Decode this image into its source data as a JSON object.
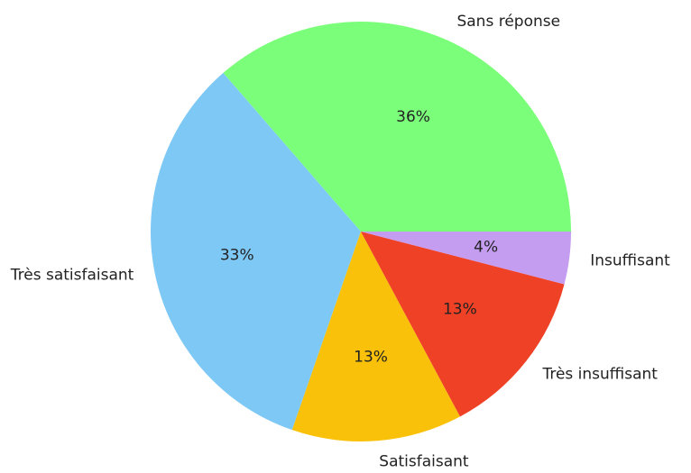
{
  "chart_data": {
    "type": "pie",
    "categories": [
      "Sans réponse",
      "Très satisfaisant",
      "Satisfaisant",
      "Très insuffisant",
      "Insuffisant"
    ],
    "values": [
      36,
      33,
      13,
      13,
      4
    ],
    "value_labels": [
      "36%",
      "33%",
      "13%",
      "13%",
      "4%"
    ],
    "colors": [
      "#7bff7b",
      "#7ec8f5",
      "#f9c10a",
      "#ef4126",
      "#c49cf0"
    ]
  }
}
